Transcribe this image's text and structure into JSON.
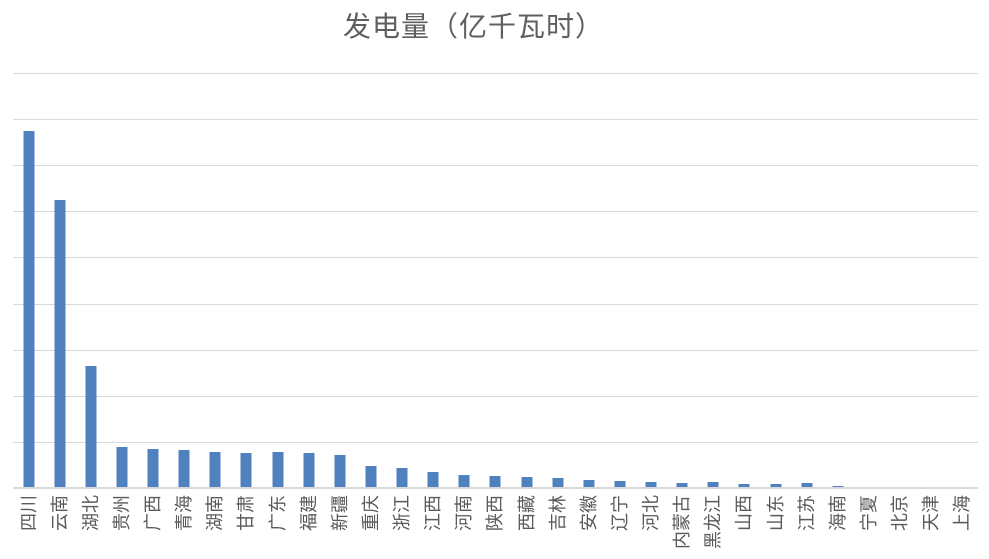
{
  "page": {
    "background": "#ffffff"
  },
  "chart": {
    "title": "发电量（亿千瓦时）",
    "styles": {
      "bar_color": "#4E81BD",
      "gridline_color": "#D9D9D9",
      "axis_line_color": "#D9D9D9",
      "title_color": "#5F5F5F",
      "label_color": "#5A5A5A"
    }
  },
  "chart_data": {
    "type": "bar",
    "title": "发电量（亿千瓦时）",
    "xlabel": "",
    "ylabel": "",
    "legend": "none",
    "grid": "horizontal gridlines, 9 equal intervals, no numeric y tick labels",
    "ylim": [
      0,
      9
    ],
    "y_unit": "gridline interval (y axis unlabeled in source)",
    "x_labels_rotation_deg": -90,
    "categories": [
      "四川",
      "云南",
      "湖北",
      "贵州",
      "广西",
      "青海",
      "湖南",
      "甘肃",
      "广东",
      "福建",
      "新疆",
      "重庆",
      "浙江",
      "江西",
      "河南",
      "陕西",
      "西藏",
      "吉林",
      "安徽",
      "辽宁",
      "河北",
      "内蒙古",
      "黑龙江",
      "山西",
      "山东",
      "江苏",
      "海南",
      "宁夏",
      "北京",
      "天津",
      "上海"
    ],
    "values": [
      7.74,
      6.24,
      2.65,
      0.88,
      0.85,
      0.82,
      0.79,
      0.77,
      0.78,
      0.76,
      0.72,
      0.48,
      0.43,
      0.34,
      0.28,
      0.27,
      0.24,
      0.21,
      0.18,
      0.16,
      0.14,
      0.1,
      0.13,
      0.09,
      0.09,
      0.1,
      0.04,
      0,
      0,
      0,
      0
    ]
  }
}
